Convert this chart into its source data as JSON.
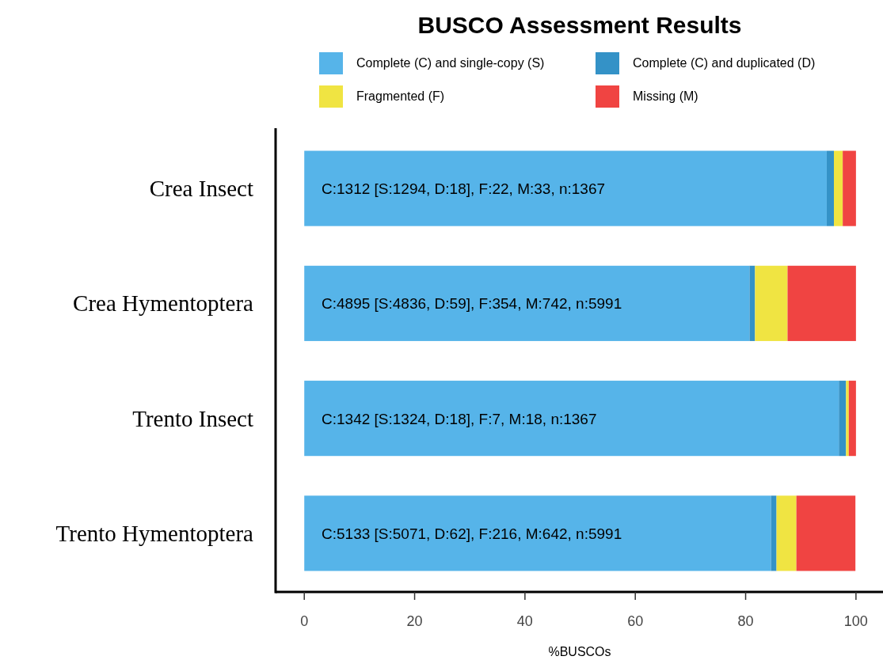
{
  "chart_data": {
    "type": "bar",
    "orientation": "horizontal",
    "stacked": true,
    "title": "BUSCO Assessment Results",
    "xlabel": "%BUSCOs",
    "categories": [
      "Crea Insect",
      "Crea Hymentoptera",
      "Trento Insect",
      "Trento Hymentoptera"
    ],
    "series": [
      {
        "name": "Complete (C) and single-copy (S)",
        "color": "#56b4e9",
        "values": [
          94.7,
          80.7,
          96.9,
          84.6
        ]
      },
      {
        "name": "Complete (C) and duplicated (D)",
        "color": "#3492c7",
        "values": [
          1.3,
          1.0,
          1.3,
          1.0
        ]
      },
      {
        "name": "Fragmented (F)",
        "color": "#f0e442",
        "values": [
          1.6,
          5.9,
          0.5,
          3.6
        ]
      },
      {
        "name": "Missing (M)",
        "color": "#f04442",
        "values": [
          2.4,
          12.4,
          1.3,
          10.7
        ]
      }
    ],
    "annotations": [
      "C:1312 [S:1294, D:18], F:22, M:33, n:1367",
      "C:4895 [S:4836, D:59], F:354, M:742, n:5991",
      "C:1342 [S:1324, D:18], F:7, M:18, n:1367",
      "C:5133 [S:5071, D:62], F:216, M:642, n:5991"
    ],
    "xlim": [
      -5.2,
      104.9
    ],
    "xticks": [
      0,
      20,
      40,
      60,
      80,
      100
    ],
    "legend": "top",
    "grid": false
  }
}
